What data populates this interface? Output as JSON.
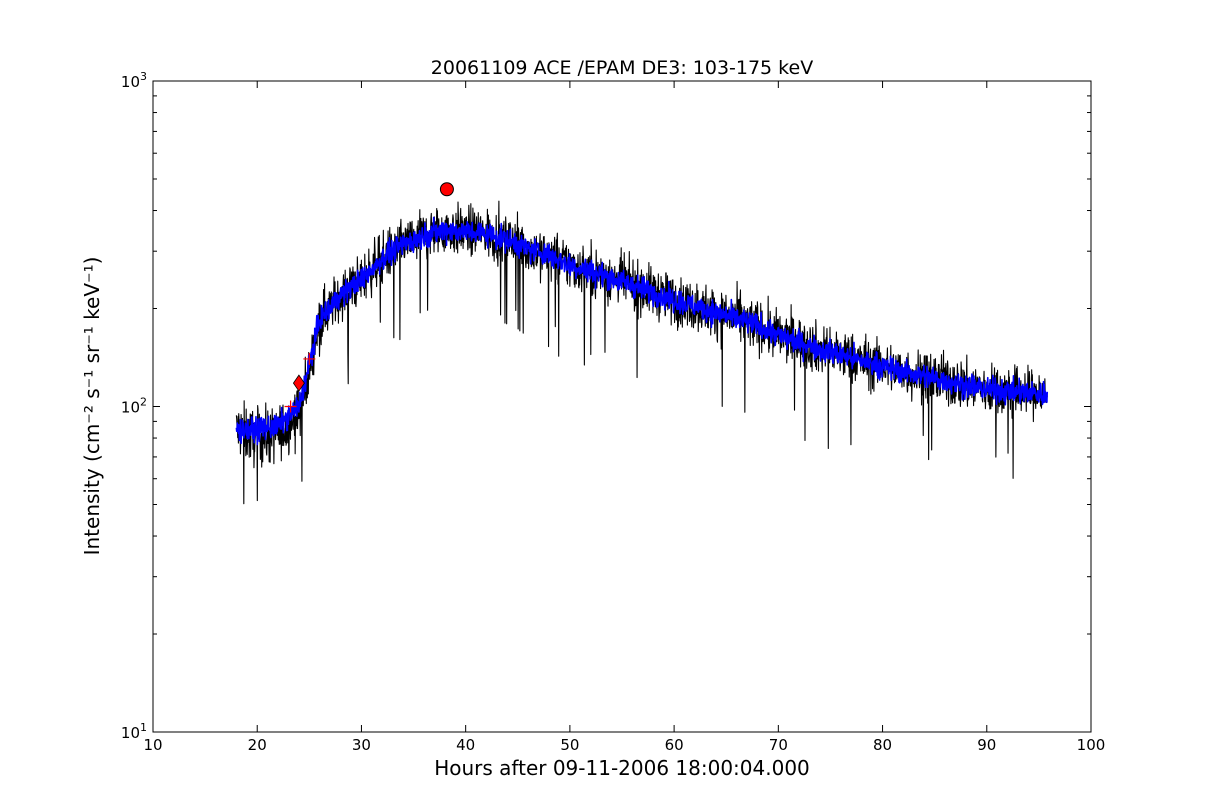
{
  "chart_data": {
    "type": "line",
    "title": "20061109 ACE /EPAM DE3: 103-175 keV",
    "xlabel": "Hours after 09-11-2006 18:00:04.000",
    "ylabel": "Intensity (cm⁻² s⁻¹ sr⁻¹ keV⁻¹)",
    "xlim": [
      10,
      100
    ],
    "ylim": [
      10,
      1000
    ],
    "yscale": "log",
    "grid": false,
    "x_ticks": [
      10,
      20,
      30,
      40,
      50,
      60,
      70,
      80,
      90,
      100
    ],
    "x_tick_labels": [
      "10",
      "20",
      "30",
      "40",
      "50",
      "60",
      "70",
      "80",
      "90",
      "100"
    ],
    "y_ticks": [
      10,
      100,
      1000
    ],
    "y_tick_labels": [
      {
        "base": "10",
        "exp": "1"
      },
      {
        "base": "10",
        "exp": "2"
      },
      {
        "base": "10",
        "exp": "3"
      }
    ],
    "series": [
      {
        "role": "intensity-black",
        "color": "#000000",
        "x_start": 18.0,
        "x_end": 95.8,
        "trend": [
          [
            18,
            85
          ],
          [
            20,
            80
          ],
          [
            22,
            82
          ],
          [
            24,
            95
          ],
          [
            25,
            130
          ],
          [
            26,
            185
          ],
          [
            28,
            220
          ],
          [
            30,
            245
          ],
          [
            32,
            285
          ],
          [
            34,
            315
          ],
          [
            36,
            335
          ],
          [
            38,
            350
          ],
          [
            40,
            345
          ],
          [
            42,
            340
          ],
          [
            44,
            325
          ],
          [
            46,
            305
          ],
          [
            48,
            292
          ],
          [
            50,
            272
          ],
          [
            52,
            260
          ],
          [
            54,
            248
          ],
          [
            56,
            236
          ],
          [
            58,
            224
          ],
          [
            60,
            212
          ],
          [
            62,
            203
          ],
          [
            64,
            195
          ],
          [
            66,
            186
          ],
          [
            68,
            177
          ],
          [
            70,
            165
          ],
          [
            72,
            158
          ],
          [
            74,
            150
          ],
          [
            76,
            144
          ],
          [
            78,
            138
          ],
          [
            80,
            133
          ],
          [
            82,
            128
          ],
          [
            84,
            124
          ],
          [
            86,
            120
          ],
          [
            88,
            116
          ],
          [
            90,
            113
          ],
          [
            92,
            111
          ],
          [
            94,
            110
          ],
          [
            95.8,
            109
          ]
        ]
      },
      {
        "role": "intensity-blue",
        "color": "#0000ff",
        "x_start": 18.0,
        "x_end": 95.8,
        "trend": [
          [
            18,
            85
          ],
          [
            20,
            85
          ],
          [
            22,
            87
          ],
          [
            24,
            100
          ],
          [
            25,
            135
          ],
          [
            26,
            185
          ],
          [
            28,
            220
          ],
          [
            30,
            245
          ],
          [
            32,
            285
          ],
          [
            34,
            315
          ],
          [
            36,
            335
          ],
          [
            38,
            350
          ],
          [
            40,
            345
          ],
          [
            42,
            340
          ],
          [
            44,
            325
          ],
          [
            46,
            305
          ],
          [
            48,
            292
          ],
          [
            50,
            272
          ],
          [
            52,
            260
          ],
          [
            54,
            248
          ],
          [
            56,
            236
          ],
          [
            58,
            224
          ],
          [
            60,
            212
          ],
          [
            62,
            203
          ],
          [
            64,
            195
          ],
          [
            66,
            186
          ],
          [
            68,
            177
          ],
          [
            70,
            165
          ],
          [
            72,
            158
          ],
          [
            74,
            150
          ],
          [
            76,
            144
          ],
          [
            78,
            138
          ],
          [
            80,
            133
          ],
          [
            82,
            128
          ],
          [
            84,
            124
          ],
          [
            86,
            120
          ],
          [
            88,
            116
          ],
          [
            90,
            113
          ],
          [
            92,
            111
          ],
          [
            94,
            110
          ],
          [
            95.8,
            109
          ]
        ]
      }
    ],
    "markers": [
      {
        "shape": "circle",
        "color": "#ff0000",
        "x": 38.2,
        "y": 465
      },
      {
        "shape": "diamond",
        "color": "#ff0000",
        "x": 24.0,
        "y": 118
      },
      {
        "shape": "plus",
        "color": "#ff0000",
        "x": 23.2,
        "y": 100
      },
      {
        "shape": "plus",
        "color": "#ff0000",
        "x": 25.0,
        "y": 140
      }
    ]
  }
}
